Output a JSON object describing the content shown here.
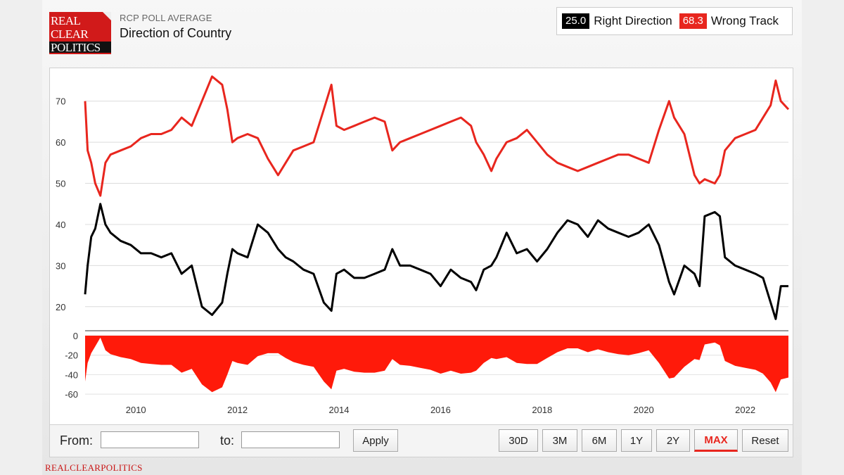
{
  "logo": {
    "line1": "REAL",
    "line2": "CLEAR",
    "line3": "POLITICS"
  },
  "header": {
    "eyebrow": "RCP POLL AVERAGE",
    "title": "Direction of Country"
  },
  "legend": {
    "right_value": "25.0",
    "right_label": "Right Direction",
    "wrong_value": "68.3",
    "wrong_label": "Wrong Track"
  },
  "colors": {
    "right": "#000000",
    "wrong": "#e8261e",
    "spread": "#ff1a0a"
  },
  "controls": {
    "from_label": "From:",
    "from_value": "",
    "to_label": "to:",
    "to_value": "",
    "apply_label": "Apply",
    "ranges": [
      "30D",
      "3M",
      "6M",
      "1Y",
      "2Y",
      "MAX"
    ],
    "active_range": "MAX",
    "reset_label": "Reset"
  },
  "footer": {
    "brand": "REALCLEARPOLITICS"
  },
  "chart_data": {
    "type": "line",
    "title": "Direction of Country",
    "x_range": [
      2009.0,
      2022.85
    ],
    "x_ticks": [
      "2010",
      "2012",
      "2014",
      "2016",
      "2018",
      "2020",
      "2022"
    ],
    "main_panel": {
      "ylim": [
        15,
        78
      ],
      "y_ticks": [
        "20",
        "30",
        "40",
        "50",
        "60",
        "70"
      ],
      "grid": true
    },
    "spread_panel": {
      "type": "area",
      "ylim": [
        -65,
        0
      ],
      "y_ticks": [
        "0",
        "-20",
        "-40",
        "-60"
      ]
    },
    "series": [
      {
        "name": "Right Direction",
        "x": [
          2009.0,
          2009.05,
          2009.12,
          2009.2,
          2009.3,
          2009.4,
          2009.5,
          2009.7,
          2009.9,
          2010.1,
          2010.3,
          2010.5,
          2010.7,
          2010.9,
          2011.1,
          2011.3,
          2011.5,
          2011.7,
          2011.8,
          2011.9,
          2012.0,
          2012.2,
          2012.4,
          2012.6,
          2012.8,
          2012.95,
          2013.1,
          2013.3,
          2013.5,
          2013.7,
          2013.85,
          2013.95,
          2014.1,
          2014.3,
          2014.5,
          2014.7,
          2014.9,
          2015.05,
          2015.2,
          2015.4,
          2015.6,
          2015.8,
          2016.0,
          2016.2,
          2016.4,
          2016.6,
          2016.7,
          2016.85,
          2017.0,
          2017.1,
          2017.3,
          2017.5,
          2017.7,
          2017.9,
          2018.1,
          2018.3,
          2018.5,
          2018.7,
          2018.9,
          2019.1,
          2019.3,
          2019.5,
          2019.7,
          2019.9,
          2020.1,
          2020.3,
          2020.5,
          2020.6,
          2020.8,
          2021.0,
          2021.1,
          2021.2,
          2021.4,
          2021.5,
          2021.6,
          2021.8,
          2022.0,
          2022.2,
          2022.35,
          2022.5,
          2022.6,
          2022.7,
          2022.85
        ],
        "values": [
          23,
          30,
          37,
          39,
          45,
          40,
          38,
          36,
          35,
          33,
          33,
          32,
          33,
          28,
          30,
          20,
          18,
          21,
          28,
          34,
          33,
          32,
          40,
          38,
          34,
          32,
          31,
          29,
          28,
          21,
          19,
          28,
          29,
          27,
          27,
          28,
          29,
          34,
          30,
          30,
          29,
          28,
          25,
          29,
          27,
          26,
          24,
          29,
          30,
          32,
          38,
          33,
          34,
          31,
          34,
          38,
          41,
          40,
          37,
          41,
          39,
          38,
          37,
          38,
          40,
          35,
          26,
          23,
          30,
          28,
          25,
          42,
          43,
          42,
          32,
          30,
          29,
          28,
          27,
          21,
          17,
          25,
          25
        ]
      },
      {
        "name": "Wrong Track",
        "x": [
          2009.0,
          2009.05,
          2009.12,
          2009.2,
          2009.3,
          2009.4,
          2009.5,
          2009.7,
          2009.9,
          2010.1,
          2010.3,
          2010.5,
          2010.7,
          2010.9,
          2011.1,
          2011.3,
          2011.5,
          2011.7,
          2011.8,
          2011.9,
          2012.0,
          2012.2,
          2012.4,
          2012.6,
          2012.8,
          2012.95,
          2013.1,
          2013.3,
          2013.5,
          2013.7,
          2013.85,
          2013.95,
          2014.1,
          2014.3,
          2014.5,
          2014.7,
          2014.9,
          2015.05,
          2015.2,
          2015.4,
          2015.6,
          2015.8,
          2016.0,
          2016.2,
          2016.4,
          2016.6,
          2016.7,
          2016.85,
          2017.0,
          2017.1,
          2017.3,
          2017.5,
          2017.7,
          2017.9,
          2018.1,
          2018.3,
          2018.5,
          2018.7,
          2018.9,
          2019.1,
          2019.3,
          2019.5,
          2019.7,
          2019.9,
          2020.1,
          2020.3,
          2020.5,
          2020.6,
          2020.8,
          2021.0,
          2021.1,
          2021.2,
          2021.4,
          2021.5,
          2021.6,
          2021.8,
          2022.0,
          2022.2,
          2022.35,
          2022.5,
          2022.6,
          2022.7,
          2022.85
        ],
        "values": [
          70,
          58,
          55,
          50,
          47,
          55,
          57,
          58,
          59,
          61,
          62,
          62,
          63,
          66,
          64,
          70,
          76,
          74,
          68,
          60,
          61,
          62,
          61,
          56,
          52,
          55,
          58,
          59,
          60,
          68,
          74,
          64,
          63,
          64,
          65,
          66,
          65,
          58,
          60,
          61,
          62,
          63,
          64,
          65,
          66,
          64,
          60,
          57,
          53,
          56,
          60,
          61,
          63,
          60,
          57,
          55,
          54,
          53,
          54,
          55,
          56,
          57,
          57,
          56,
          55,
          63,
          70,
          66,
          62,
          52,
          50,
          51,
          50,
          52,
          58,
          61,
          62,
          63,
          66,
          69,
          75,
          70,
          68
        ]
      }
    ],
    "spread_series": {
      "name": "Spread",
      "note_values_are_right_minus_wrong": "",
      "x": [
        2009.0,
        2009.05,
        2009.12,
        2009.2,
        2009.3,
        2009.4,
        2009.5,
        2009.7,
        2009.9,
        2010.1,
        2010.3,
        2010.5,
        2010.7,
        2010.9,
        2011.1,
        2011.3,
        2011.5,
        2011.7,
        2011.8,
        2011.9,
        2012.0,
        2012.2,
        2012.4,
        2012.6,
        2012.8,
        2012.95,
        2013.1,
        2013.3,
        2013.5,
        2013.7,
        2013.85,
        2013.95,
        2014.1,
        2014.3,
        2014.5,
        2014.7,
        2014.9,
        2015.05,
        2015.2,
        2015.4,
        2015.6,
        2015.8,
        2016.0,
        2016.2,
        2016.4,
        2016.6,
        2016.7,
        2016.85,
        2017.0,
        2017.1,
        2017.3,
        2017.5,
        2017.7,
        2017.9,
        2018.1,
        2018.3,
        2018.5,
        2018.7,
        2018.9,
        2019.1,
        2019.3,
        2019.5,
        2019.7,
        2019.9,
        2020.1,
        2020.3,
        2020.5,
        2020.6,
        2020.8,
        2021.0,
        2021.1,
        2021.2,
        2021.4,
        2021.5,
        2021.6,
        2021.8,
        2022.0,
        2022.2,
        2022.35,
        2022.5,
        2022.6,
        2022.7,
        2022.85
      ],
      "values": [
        -47,
        -28,
        -18,
        -11,
        -2,
        -15,
        -19,
        -22,
        -24,
        -28,
        -29,
        -30,
        -30,
        -38,
        -34,
        -50,
        -58,
        -53,
        -40,
        -26,
        -28,
        -30,
        -21,
        -18,
        -18,
        -23,
        -27,
        -30,
        -32,
        -47,
        -55,
        -36,
        -34,
        -37,
        -38,
        -38,
        -36,
        -24,
        -30,
        -31,
        -33,
        -35,
        -39,
        -36,
        -39,
        -38,
        -36,
        -28,
        -23,
        -24,
        -22,
        -28,
        -29,
        -29,
        -23,
        -17,
        -13,
        -13,
        -17,
        -14,
        -17,
        -19,
        -20,
        -18,
        -15,
        -28,
        -44,
        -43,
        -32,
        -24,
        -25,
        -9,
        -7,
        -10,
        -26,
        -31,
        -33,
        -35,
        -39,
        -48,
        -58,
        -45,
        -43
      ]
    }
  }
}
